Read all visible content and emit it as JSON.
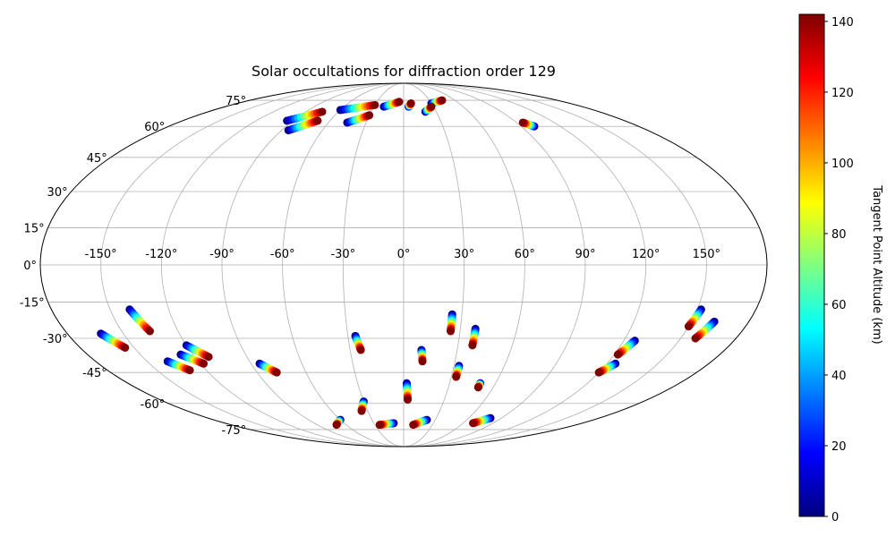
{
  "chart_data": {
    "type": "scatter",
    "projection": "mollweide",
    "title": "Solar occultations for diffraction order 129",
    "grid": true,
    "lon_ticks": [
      -150,
      -120,
      -90,
      -60,
      -30,
      0,
      30,
      60,
      90,
      120,
      150
    ],
    "lon_tick_labels": [
      "-150°",
      "-120°",
      "-90°",
      "-60°",
      "-30°",
      "0°",
      "30°",
      "60°",
      "90°",
      "120°",
      "150°"
    ],
    "lat_ticks": [
      75,
      60,
      45,
      30,
      15,
      0,
      -15,
      -30,
      -45,
      -60,
      -75
    ],
    "lat_tick_labels": [
      "75°",
      "60°",
      "45°",
      "30°",
      "15°",
      "0°",
      "-15°",
      "-30°",
      "-45°",
      "-60°",
      "-75°"
    ],
    "colorbar": {
      "label": "Tangent Point Altitude (km)",
      "min": 0,
      "max": 142,
      "colormap": "jet",
      "ticks": [
        0,
        20,
        40,
        60,
        80,
        100,
        120,
        140
      ],
      "tick_labels": [
        "0",
        "20",
        "40",
        "60",
        "80",
        "100",
        "120",
        "140"
      ]
    },
    "tracks": [
      {
        "lon": [
          -162,
          -155
        ],
        "lat": [
          -28,
          -34
        ]
      },
      {
        "lon": [
          -140,
          -135
        ],
        "lat": [
          -18,
          -27
        ]
      },
      {
        "lon": [
          -138,
          -130
        ],
        "lat": [
          -40,
          -44
        ]
      },
      {
        "lon": [
          -127,
          -118
        ],
        "lat": [
          -37,
          -41
        ]
      },
      {
        "lon": [
          -120,
          -112
        ],
        "lat": [
          -33,
          -38
        ]
      },
      {
        "lon": [
          -85,
          -78
        ],
        "lat": [
          -41,
          -45
        ]
      },
      {
        "lon": [
          -26,
          -24
        ],
        "lat": [
          -29,
          -35
        ]
      },
      {
        "lon": [
          10,
          11
        ],
        "lat": [
          -35,
          -40
        ]
      },
      {
        "lon": [
          25,
          25
        ],
        "lat": [
          -20,
          -27
        ]
      },
      {
        "lon": [
          38,
          38
        ],
        "lat": [
          -26,
          -33
        ]
      },
      {
        "lon": [
          33,
          33
        ],
        "lat": [
          -42,
          -47
        ]
      },
      {
        "lon": [
          152,
          150
        ],
        "lat": [
          -18,
          -25
        ]
      },
      {
        "lon": [
          162,
          158
        ],
        "lat": [
          -23,
          -30
        ]
      },
      {
        "lon": [
          126,
          122
        ],
        "lat": [
          -31,
          -37
        ]
      },
      {
        "lon": [
          125,
          120
        ],
        "lat": [
          -41,
          -45
        ]
      },
      {
        "lon": [
          -95,
          -75
        ],
        "lat": [
          63,
          68
        ]
      },
      {
        "lon": [
          -85,
          -70
        ],
        "lat": [
          58,
          63
        ]
      },
      {
        "lon": [
          -60,
          -30
        ],
        "lat": [
          69,
          72
        ]
      },
      {
        "lon": [
          -45,
          -30
        ],
        "lat": [
          62,
          66
        ]
      },
      {
        "lon": [
          -20,
          -5
        ],
        "lat": [
          71,
          74
        ]
      },
      {
        "lon": [
          5,
          8
        ],
        "lat": [
          71,
          73
        ]
      },
      {
        "lon": [
          30,
          45
        ],
        "lat": [
          73,
          75
        ]
      },
      {
        "lon": [
          20,
          28
        ],
        "lat": [
          68,
          71
        ]
      },
      {
        "lon": [
          100,
          95
        ],
        "lat": [
          60,
          62
        ]
      },
      {
        "lon": [
          -30,
          -35
        ],
        "lat": [
          -59,
          -64
        ]
      },
      {
        "lon": [
          2,
          3
        ],
        "lat": [
          -50,
          -58
        ]
      },
      {
        "lon": [
          50,
          50
        ],
        "lat": [
          -50,
          -52
        ]
      },
      {
        "lon": [
          22,
          10
        ],
        "lat": [
          -69,
          -72
        ]
      },
      {
        "lon": [
          80,
          70
        ],
        "lat": [
          -68,
          -71
        ]
      },
      {
        "lon": [
          -10,
          -25
        ],
        "lat": [
          -71,
          -72
        ]
      },
      {
        "lon": [
          -60,
          -70
        ],
        "lat": [
          -69,
          -72
        ]
      }
    ]
  }
}
